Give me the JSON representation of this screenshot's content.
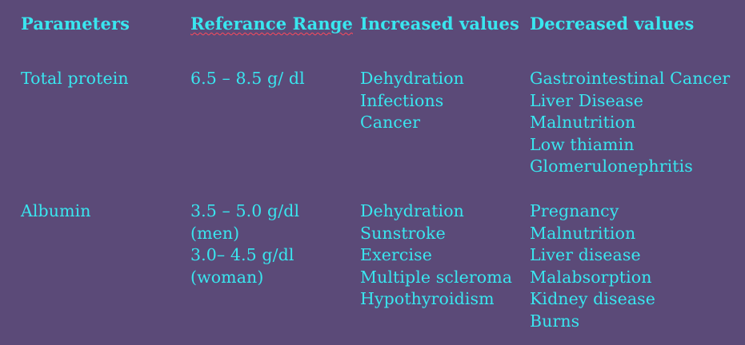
{
  "table": {
    "headers": {
      "parameters": "Parameters",
      "reference_range": "Referance Range",
      "increased_values": "Increased values",
      "decreased_values": "Decreased values"
    },
    "rows": [
      {
        "parameter": "Total protein",
        "range_lines": [
          "6.5 – 8.5 g/ dl"
        ],
        "increased": [
          "Dehydration",
          "Infections",
          "Cancer"
        ],
        "decreased": [
          "Gastrointestinal Cancer",
          "Liver Disease",
          "Malnutrition",
          "Low thiamin",
          "Glomerulonephritis"
        ]
      },
      {
        "parameter": "Albumin",
        "range_lines": [
          "3.5 – 5.0 g/dl",
          "(men)",
          "3.0– 4.5 g/dl",
          "(woman)"
        ],
        "increased": [
          "Dehydration",
          "Sunstroke",
          "Exercise",
          "Multiple scleroma",
          "Hypothyroidism"
        ],
        "decreased": [
          "Pregnancy",
          "Malnutrition",
          "Liver disease",
          "Malabsorption",
          "Kidney disease",
          "Burns"
        ]
      }
    ]
  },
  "colors": {
    "background": "#5b4a78",
    "text": "#39e6ef",
    "spellcheck_underline": "#ff4a5a"
  }
}
